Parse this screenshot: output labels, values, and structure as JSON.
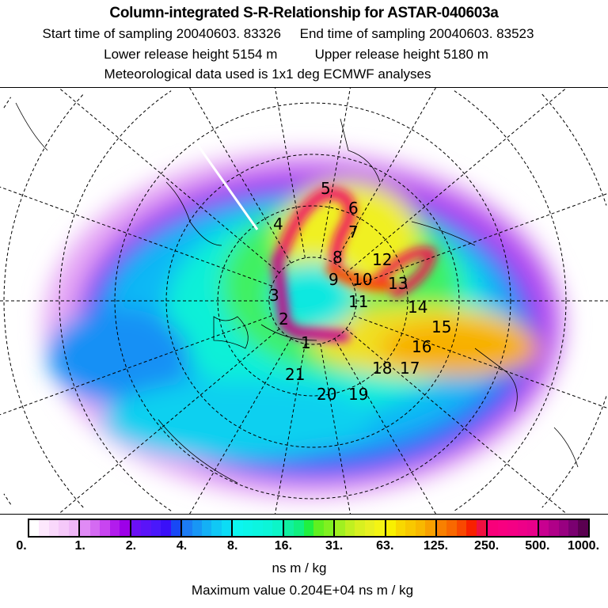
{
  "header": {
    "title": "Column-integrated S-R-Relationship for ASTAR-040603a",
    "line1": "Start time of sampling 20040603. 83326     End time of sampling 20040603. 83523",
    "line2": "Lower release height 5154 m          Upper release height 5180 m",
    "line3": "Meteorological data used is 1x1 deg ECMWF analyses"
  },
  "chart_data": {
    "type": "heatmap",
    "title": "Column-integrated S-R-Relationship for ASTAR-040603a",
    "projection": "polar stereographic, north pole",
    "colorbar": {
      "tick_labels": [
        "0.",
        "1.",
        "2.",
        "4.",
        "8.",
        "16.",
        "31.",
        "63.",
        "125.",
        "250.",
        "500.",
        "1000."
      ],
      "unit": "ns m / kg",
      "colors": [
        [
          "#ffffff",
          "#fde8fd",
          "#f9d8fb",
          "#f5c8f9",
          "#efb6f7"
        ],
        [
          "#e08af5",
          "#d46af2",
          "#c845f0",
          "#b21ced",
          "#9d00e8"
        ],
        [
          "#6a10f5",
          "#5a14f8",
          "#4a18fb",
          "#3a10f8",
          "#1848f5"
        ],
        [
          "#1c7cf5",
          "#1896f5",
          "#14b0f5",
          "#10c8f5",
          "#0cdcf5"
        ],
        [
          "#0cf5f0",
          "#0cf5e8",
          "#0cf5e0",
          "#0cf5d8",
          "#0cf5c8"
        ],
        [
          "#10f0a0",
          "#10f080",
          "#20f040",
          "#60f020",
          "#80f020"
        ],
        [
          "#a0f020",
          "#c0f020",
          "#d8f020",
          "#e8f020",
          "#f4f414"
        ],
        [
          "#f8f000",
          "#f8d800",
          "#f8c800",
          "#f8b800",
          "#f8a000"
        ],
        [
          "#f88000",
          "#f86800",
          "#f84800",
          "#f82000",
          "#f01040"
        ],
        [
          "#f8007a",
          "#f80080",
          "#f40084",
          "#ee0088",
          "#e8008a"
        ],
        [
          "#c80090",
          "#b00088",
          "#980080",
          "#7a0070",
          "#5a0050"
        ]
      ]
    },
    "max_value": "Maximum value  0.204E+04 ns m / kg",
    "track_labels": [
      "1",
      "2",
      "3",
      "4",
      "5",
      "6",
      "7",
      "8",
      "9",
      "10",
      "11",
      "12",
      "13",
      "14",
      "15",
      "16",
      "17",
      "18",
      "19",
      "20",
      "21"
    ]
  }
}
